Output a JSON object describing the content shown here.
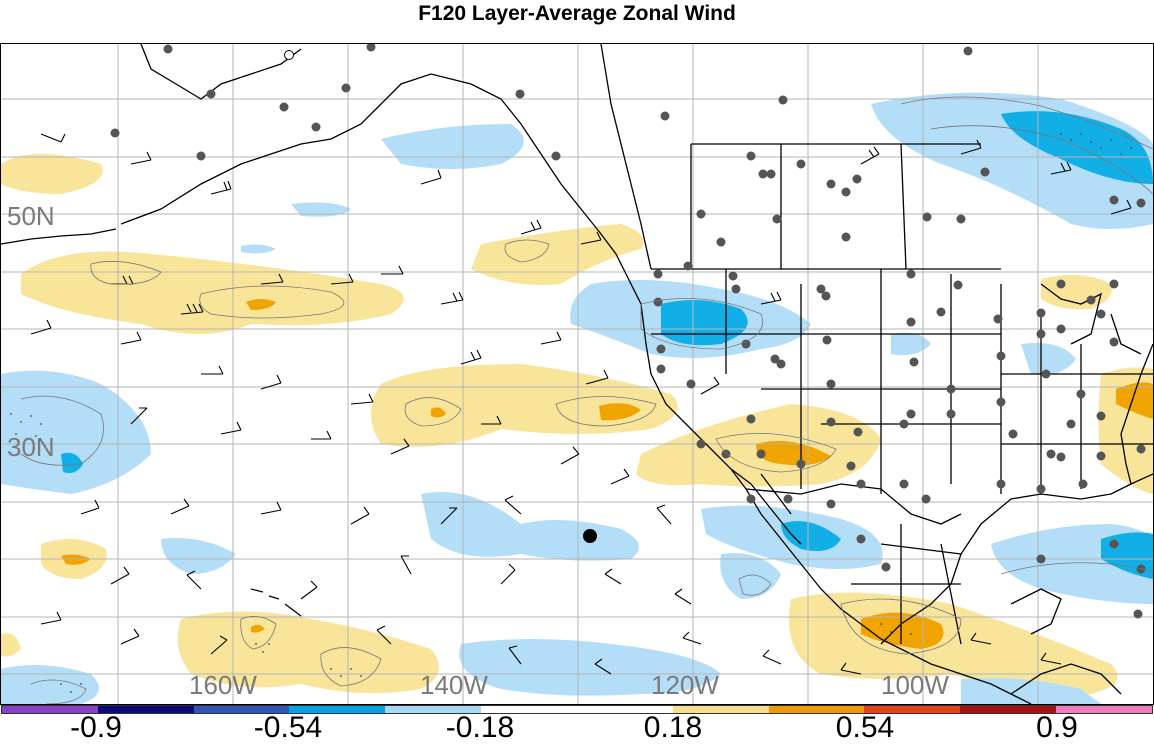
{
  "title": "F120 Layer-Average Zonal Wind",
  "lat_labels": [
    "50N",
    "30N"
  ],
  "lon_labels": [
    "160W",
    "140W",
    "120W",
    "100W"
  ],
  "colorbar": {
    "colors": [
      "#8a3fc8",
      "#0a0a7a",
      "#2f55b7",
      "#00a4e4",
      "#a7d9f7",
      "#ffffff",
      "#ffffff",
      "#f7e08c",
      "#ef9b07",
      "#e8441a",
      "#a51414",
      "#ee7fbe"
    ],
    "tick_labels": [
      "-0.9",
      "-0.54",
      "-0.18",
      "0.18",
      "0.54",
      "0.9"
    ]
  },
  "colors": {
    "positive_light": "#f9e59a",
    "positive_strong": "#f0a400",
    "negative_light": "#b4ddf8",
    "negative_strong": "#12aee6",
    "station": "#555555",
    "grid": "#b5b5b5",
    "border": "#000000"
  }
}
